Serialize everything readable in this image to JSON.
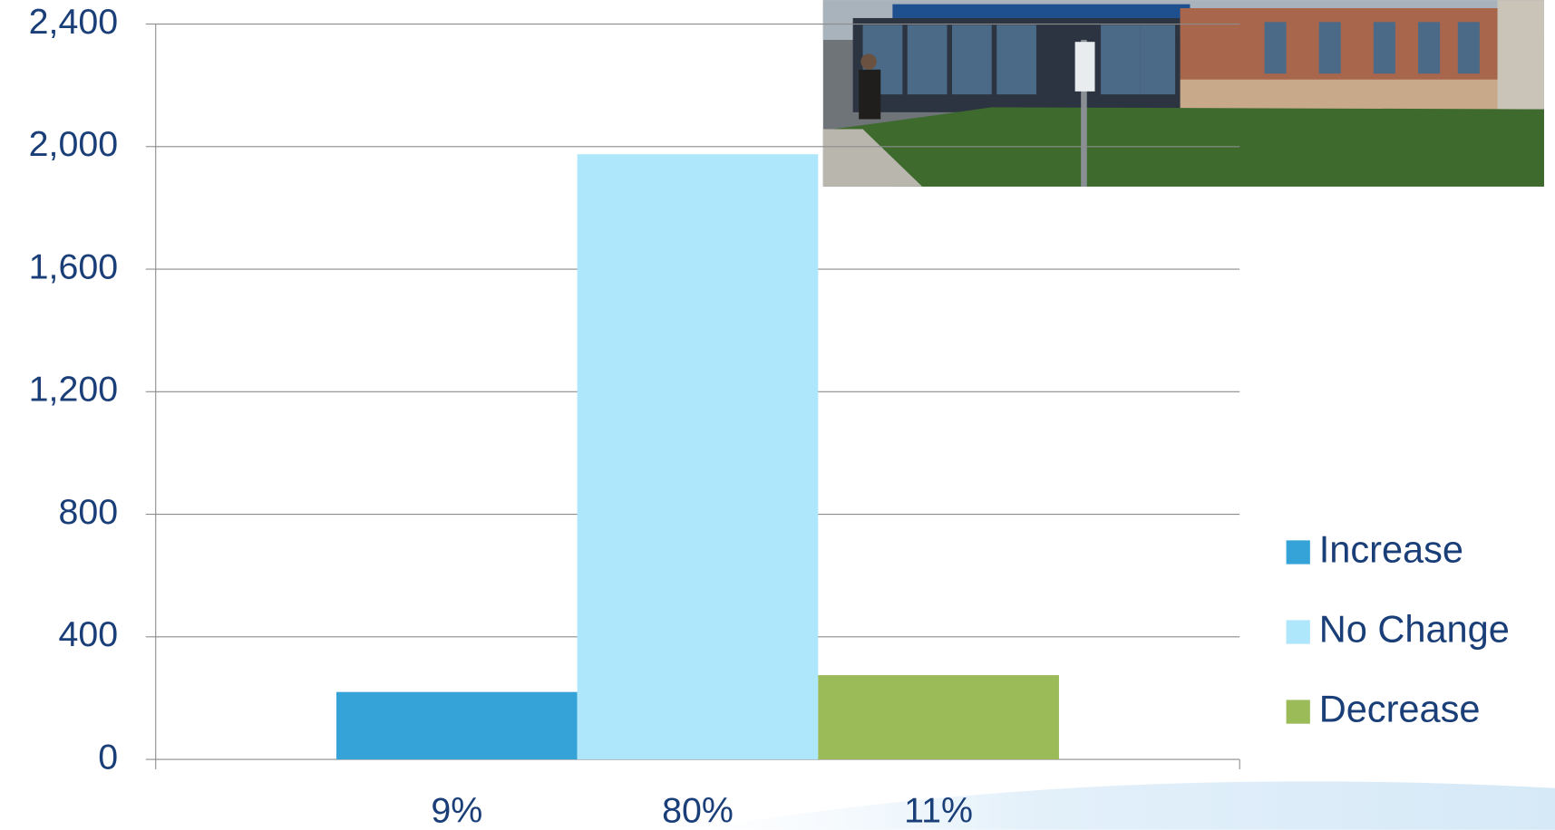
{
  "chart_data": {
    "type": "bar",
    "categories": [
      null
    ],
    "series": [
      {
        "name": "Increase",
        "color": "#35a3d8",
        "values": [
          220
        ]
      },
      {
        "name": "No Change",
        "color": "#aee6fb",
        "values": [
          1975
        ]
      },
      {
        "name": "Decrease",
        "color": "#9bbb59",
        "values": [
          275
        ]
      }
    ],
    "annotations": [
      "9%",
      "80%",
      "11%"
    ],
    "ylim": [
      0,
      2400
    ],
    "yticks": [
      0,
      400,
      800,
      {
        "value": 1200,
        "label": "1,200"
      },
      {
        "value": 1600,
        "label": "1,600"
      },
      {
        "value": 2000,
        "label": "2,000"
      },
      {
        "value": 2400,
        "label": "2,400"
      }
    ],
    "grid": true,
    "legend": "right"
  }
}
